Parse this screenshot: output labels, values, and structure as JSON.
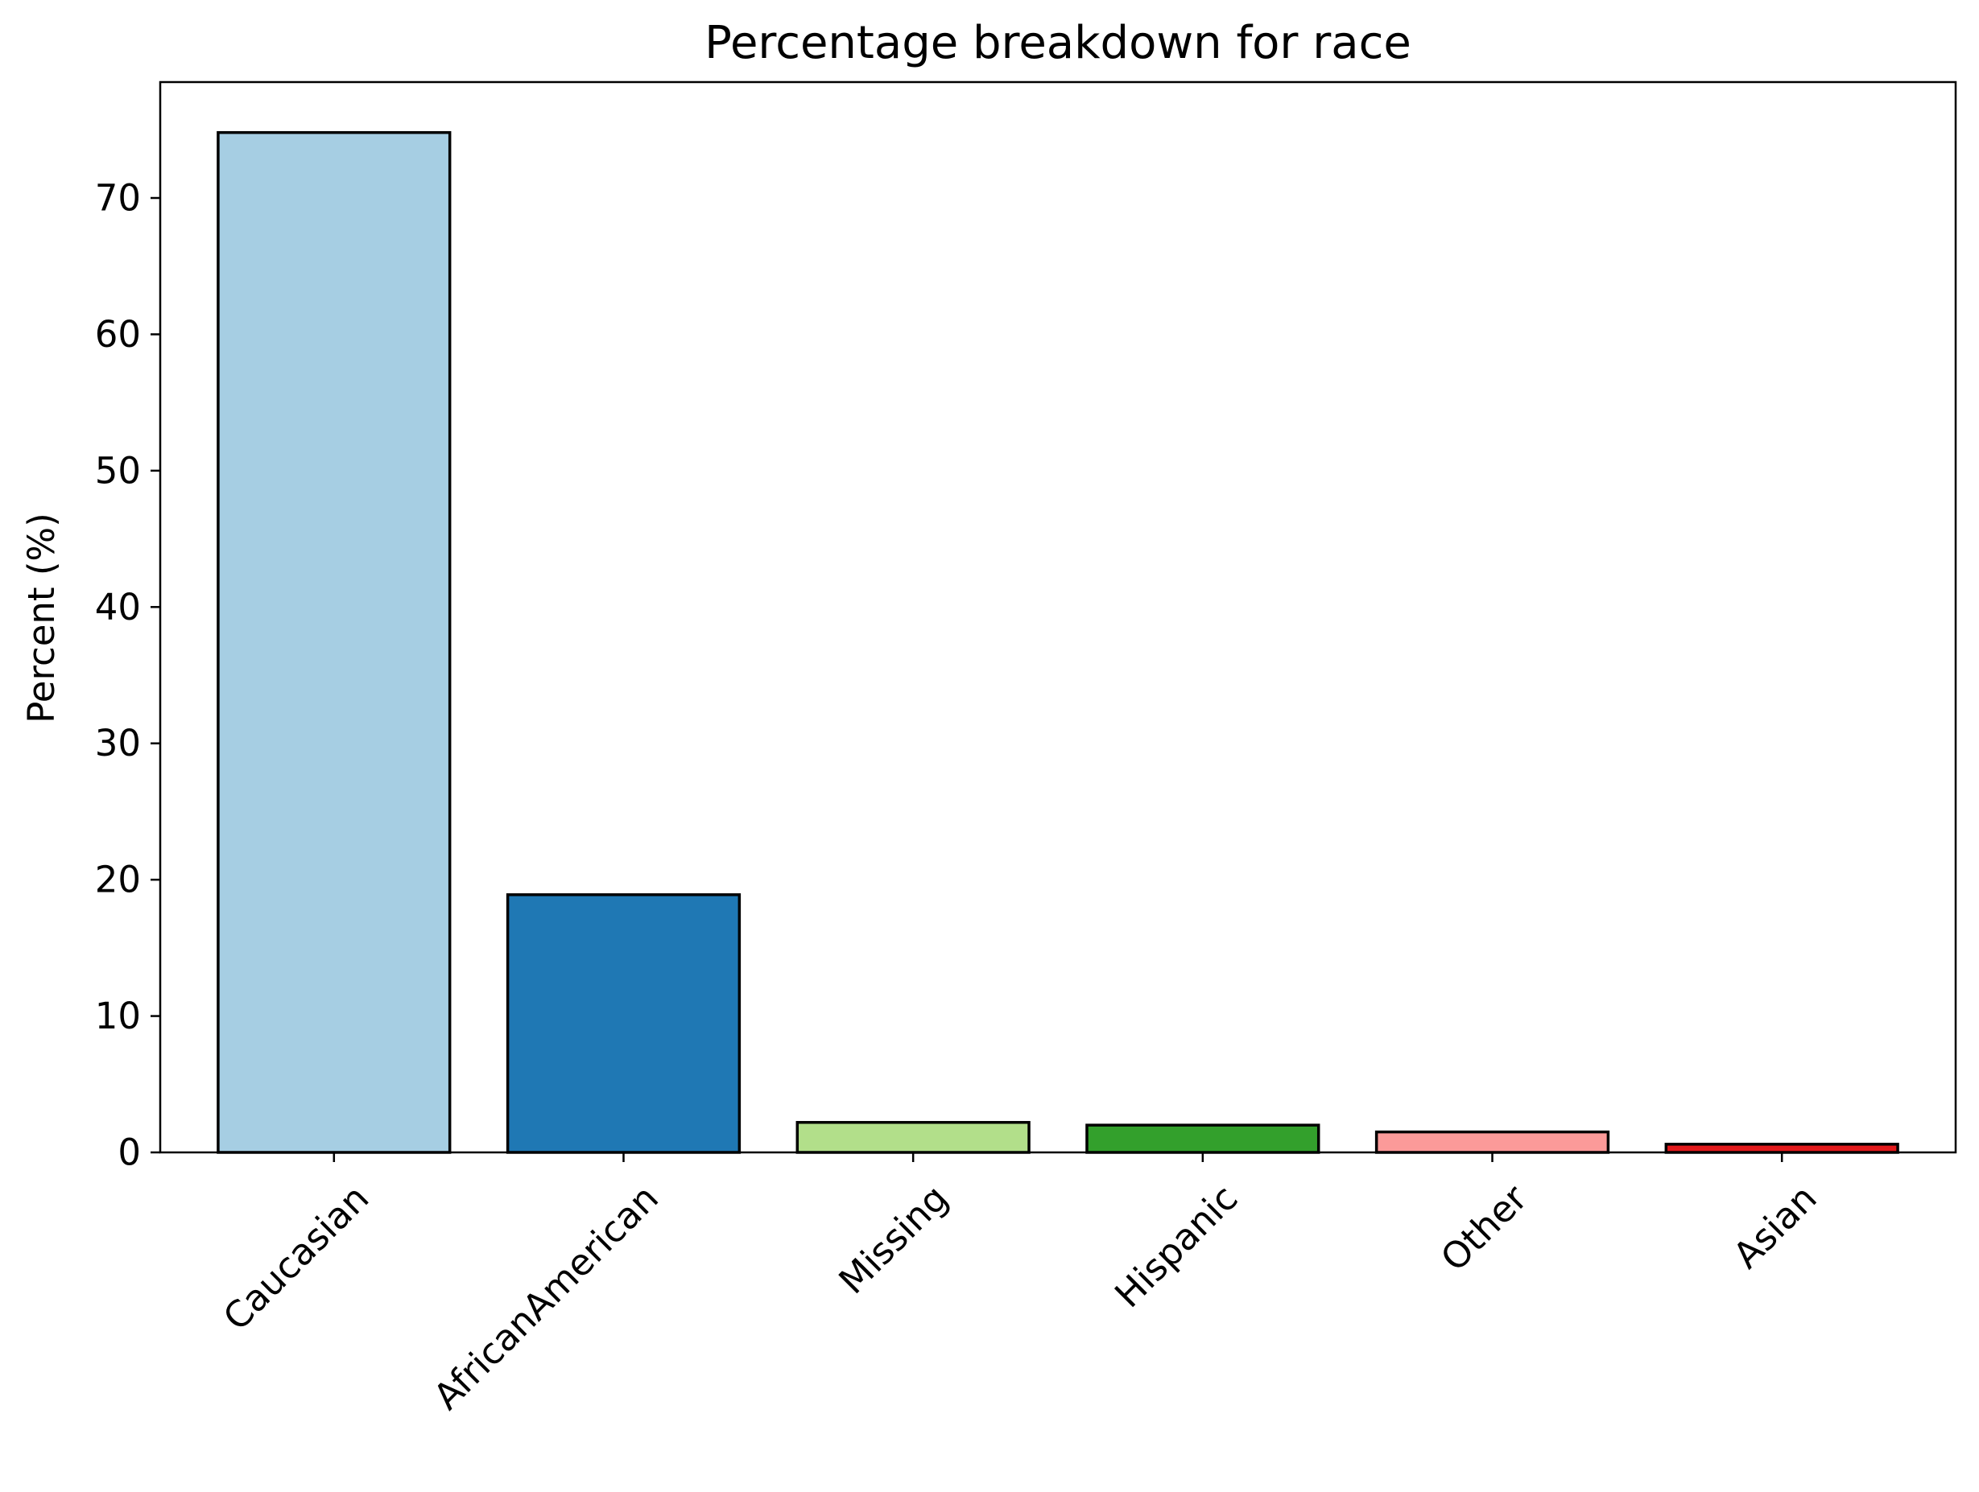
{
  "chart_data": {
    "type": "bar",
    "title": "Percentage breakdown for race",
    "xlabel": "",
    "ylabel": "Percent (%)",
    "categories": [
      "Caucasian",
      "AfricanAmerican",
      "Missing",
      "Hispanic",
      "Other",
      "Asian"
    ],
    "values": [
      74.8,
      18.9,
      2.2,
      2.0,
      1.5,
      0.6
    ],
    "colors": [
      "#a6cee3",
      "#1f78b4",
      "#b2df8a",
      "#33a02c",
      "#fb9a99",
      "#e31a1c"
    ],
    "ylim": [
      0,
      78.5
    ],
    "yticks": [
      0,
      10,
      20,
      30,
      40,
      50,
      60,
      70
    ],
    "grid": false,
    "legend": "none"
  }
}
